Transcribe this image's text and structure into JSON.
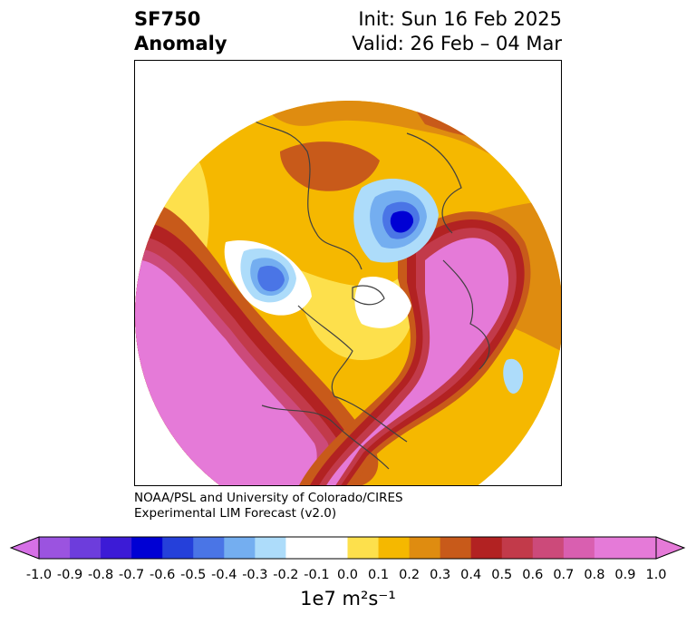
{
  "title": {
    "line1": "SF750",
    "line2": "Anomaly"
  },
  "init": {
    "line1": "Init: Sun 16 Feb 2025",
    "line2": "Valid: 26 Feb – 04 Mar"
  },
  "credit": {
    "line1": "NOAA/PSL and University of Colorado/CIRES",
    "line2": "Experimental LIM Forecast (v2.0)"
  },
  "colorbar": {
    "units": "1e7 m²s⁻¹",
    "ticks": [
      "-1.0",
      "-0.9",
      "-0.8",
      "-0.7",
      "-0.6",
      "-0.5",
      "-0.4",
      "-0.3",
      "-0.2",
      "-0.1",
      "0.0",
      "0.1",
      "0.2",
      "0.3",
      "0.4",
      "0.5",
      "0.6",
      "0.7",
      "0.8",
      "0.9",
      "1.0"
    ],
    "colors": [
      "#9b53e0",
      "#6d3ddc",
      "#3c1bd6",
      "#0000d4",
      "#2540da",
      "#4a75e6",
      "#74aef0",
      "#addcfa",
      "#ffffff",
      "#ffffff",
      "#fde04c",
      "#f5b800",
      "#df8c10",
      "#c85a1a",
      "#b22222",
      "#c23a4a",
      "#cc4a7a",
      "#d95fb0",
      "#e57ad8",
      "#e57ad8"
    ],
    "extend_low": "#d670e6",
    "extend_high": "#e57ad8"
  },
  "map": {
    "projection": "north-polar-stereographic",
    "field": "SF750 anomaly",
    "features": [
      {
        "type": "positive-anomaly",
        "region": "North Pacific / North America",
        "level": 1.0
      },
      {
        "type": "positive-anomaly",
        "region": "Eurasia / Europe",
        "level": 1.0
      },
      {
        "type": "negative-anomaly",
        "region": "Barents / Kara Sea",
        "level": -0.6
      },
      {
        "type": "negative-anomaly",
        "region": "East Siberian Sea",
        "level": -0.5
      },
      {
        "type": "negative-anomaly",
        "region": "North Atlantic",
        "level": -0.2
      }
    ]
  }
}
